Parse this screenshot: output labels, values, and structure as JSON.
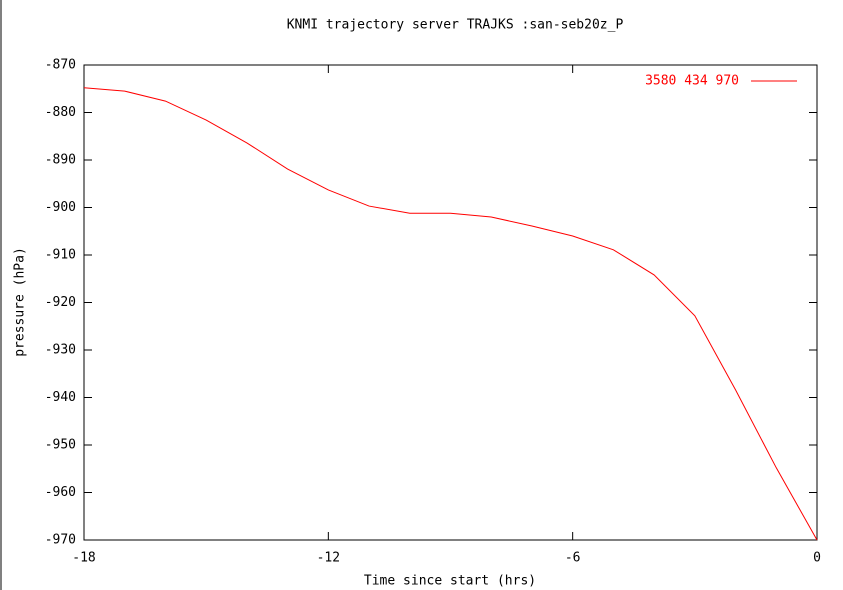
{
  "chart_data": {
    "type": "line",
    "title": "KNMI trajectory server TRAJKS :san-seb20z_P",
    "x_label": "Time since start (hrs)",
    "y_label": "pressure (hPa)",
    "x": [
      -18,
      -17,
      -16,
      -15,
      -14,
      -13,
      -12,
      -11,
      -10,
      -9,
      -8,
      -7,
      -6,
      -5,
      -4,
      -3,
      -2,
      -1,
      0
    ],
    "series": [
      {
        "name": "3580 434 970",
        "color": "#ff0000",
        "values": [
          -874.8,
          -875.5,
          -877.6,
          -881.6,
          -886.4,
          -891.9,
          -896.3,
          -899.7,
          -901.2,
          -901.2,
          -902.0,
          -903.9,
          -906.0,
          -908.9,
          -914.2,
          -922.8,
          -938.4,
          -954.8,
          -970
        ]
      }
    ],
    "xlim": [
      -18,
      0
    ],
    "xticks": [
      -18,
      -12,
      -6,
      0
    ],
    "ylim": [
      -970,
      -870
    ],
    "yticks": [
      -970,
      -960,
      -950,
      -940,
      -930,
      -920,
      -910,
      -900,
      -890,
      -880,
      -870
    ],
    "legend": "top-right",
    "grid": false
  }
}
